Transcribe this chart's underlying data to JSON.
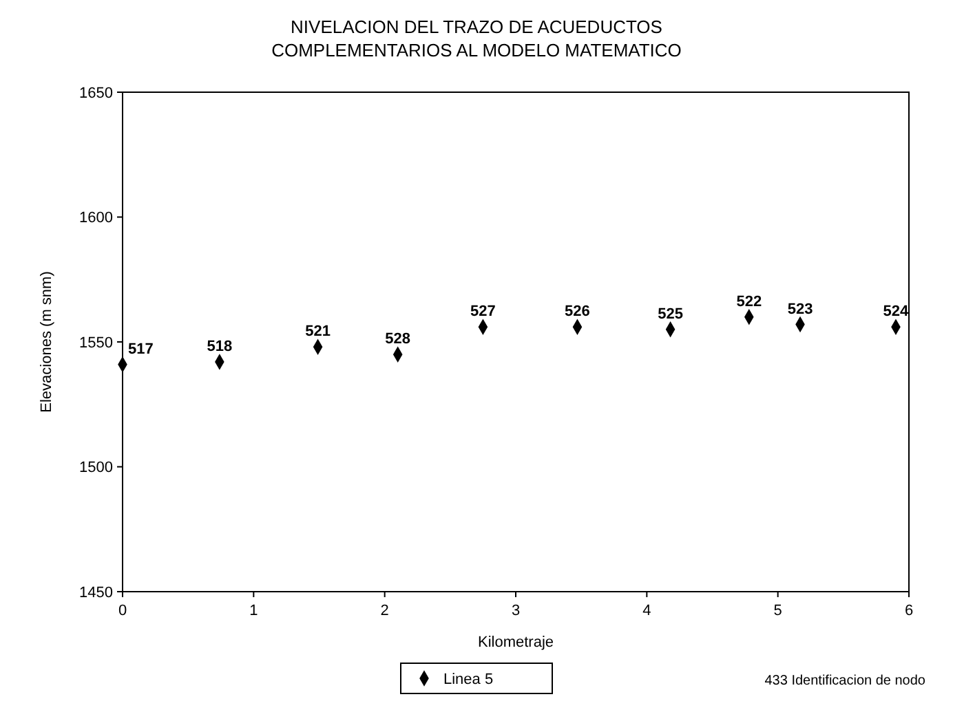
{
  "chart_data": {
    "type": "scatter",
    "title": "NIVELACION DEL TRAZO DE ACUEDUCTOS",
    "subtitle": "COMPLEMENTARIOS AL MODELO MATEMATICO",
    "xlabel": "Kilometraje",
    "ylabel": "Elevaciones (m snm)",
    "x": [
      0,
      0.74,
      1.49,
      2.1,
      2.75,
      3.47,
      4.18,
      4.78,
      5.17,
      5.9
    ],
    "series": [
      {
        "name": "Linea 5",
        "color": "#000000",
        "values": [
          1541,
          1542,
          1548,
          1545,
          1556,
          1556,
          1555,
          1560,
          1557,
          1556
        ]
      }
    ],
    "xlim": [
      0,
      6
    ],
    "xticks": [
      0,
      1,
      2,
      3,
      4,
      5,
      6
    ],
    "ylim": [
      1450,
      1650
    ],
    "yticks": [
      1450,
      1500,
      1550,
      1600,
      1650
    ],
    "grid": false,
    "legend": "bottom",
    "marker": "diamond",
    "annotations": [
      {
        "text": "517",
        "x": 0,
        "y": 1541
      },
      {
        "text": "518",
        "x": 0.74,
        "y": 1542
      },
      {
        "text": "521",
        "x": 1.49,
        "y": 1548
      },
      {
        "text": "528",
        "x": 2.1,
        "y": 1545
      },
      {
        "text": "527",
        "x": 2.75,
        "y": 1556
      },
      {
        "text": "526",
        "x": 3.47,
        "y": 1556
      },
      {
        "text": "525",
        "x": 4.18,
        "y": 1555
      },
      {
        "text": "522",
        "x": 4.78,
        "y": 1560
      },
      {
        "text": "523",
        "x": 5.17,
        "y": 1557
      },
      {
        "text": "524",
        "x": 5.9,
        "y": 1556
      },
      "433 Identificacion de nodo"
    ]
  }
}
